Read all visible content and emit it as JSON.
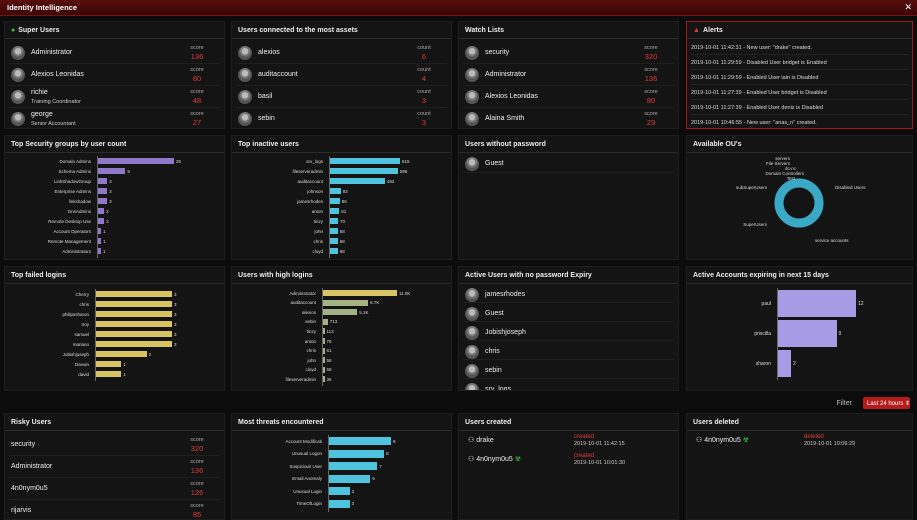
{
  "app": {
    "title": "Identity Intelligence",
    "close": "✕"
  },
  "colors": {
    "purple": "#8f78c9",
    "cyan": "#4fc3dd",
    "yellow": "#d8c463",
    "lavender": "#a89be6",
    "donut": "#39a9c6",
    "red": "#e03a3a"
  },
  "super_users": {
    "title": "Super Users",
    "icon": "user-star-icon",
    "items": [
      {
        "name": "Administrator",
        "subtitle": "",
        "score_label": "score",
        "score": "136"
      },
      {
        "name": "Alexios Leonidas",
        "subtitle": "",
        "score_label": "score",
        "score": "80"
      },
      {
        "name": "richie",
        "subtitle": "Training Coordinator",
        "score_label": "score",
        "score": "48"
      },
      {
        "name": "george",
        "subtitle": "Senior Accountant",
        "score_label": "score",
        "score": "27"
      }
    ]
  },
  "connected": {
    "title": "Users connected to the most assets",
    "items": [
      {
        "name": "alexios",
        "label": "count",
        "value": "6"
      },
      {
        "name": "auditaccount",
        "label": "count",
        "value": "4"
      },
      {
        "name": "basil",
        "label": "count",
        "value": "3"
      },
      {
        "name": "sebin",
        "label": "count",
        "value": "3"
      }
    ]
  },
  "watch": {
    "title": "Watch Lists",
    "items": [
      {
        "name": "security",
        "label": "score",
        "value": "320"
      },
      {
        "name": "Administrator",
        "label": "score",
        "value": "136"
      },
      {
        "name": "Alexios Leonidas",
        "label": "score",
        "value": "80"
      },
      {
        "name": "Alaina Smith",
        "label": "score",
        "value": "29"
      }
    ]
  },
  "alerts": {
    "title": "Alerts",
    "icon": "warning-icon",
    "items": [
      "2019-10-01 11:42:31 - New user: \"drake\" created.",
      "2019-10-01 11:29:59 - Disabled User bridget is Enabled",
      "2019-10-01 11:29:59 - Enabled User iain is Disabled",
      "2019-10-01 11:27:39 - Enabled User bridget is Disabled",
      "2019-10-01 11:27:39 - Enabled User deniz is Disabled",
      "2019-10-01 10:46:55 - New user: \"anas_n\" created."
    ]
  },
  "without_password": {
    "title": "Users without password",
    "items": [
      "Guest"
    ]
  },
  "active_no_expiry": {
    "title": "Active Users with no password Expiry",
    "items": [
      "jamesrhodes",
      "Guest",
      "Jobishjoseph",
      "chris",
      "sebin",
      "srv_logs"
    ]
  },
  "filter": {
    "label": "Filter",
    "value": "Last 24 hours ⇕"
  },
  "risky": {
    "title": "Risky Users",
    "items": [
      {
        "name": "security",
        "label": "score",
        "value": "320"
      },
      {
        "name": "Administrator",
        "label": "score",
        "value": "136"
      },
      {
        "name": "4n0nym0u5",
        "label": "score",
        "value": "126"
      },
      {
        "name": "rijarvis",
        "label": "score",
        "value": "85"
      }
    ]
  },
  "created": {
    "title": "Users created",
    "items": [
      {
        "name": "drake",
        "status": "created",
        "date": "2019-10-01 11:42:15",
        "badge": ""
      },
      {
        "name": "4n0nym0u5",
        "status": "created",
        "date": "2019-10-01 10:01:30",
        "badge": "☢"
      }
    ]
  },
  "deleted": {
    "title": "Users deleted",
    "items": [
      {
        "name": "4n0nym0u5",
        "status": "deleted",
        "date": "2019-10-01 10:06:29",
        "badge": "☢"
      }
    ]
  },
  "charts": {
    "groups": {
      "title": "Top Security groups by user count",
      "chart_data": {
        "type": "bar",
        "orientation": "horizontal",
        "color": "#8f78c9",
        "max": 25,
        "categories": [
          "Domain Admins",
          "Schema Admins",
          "LinkShadowGroup",
          "Enterprise Admins",
          "linkshadow",
          "DnsAdmins",
          "Remote Desktop Use",
          "Account Operators",
          "Remote Management",
          "Administrators"
        ],
        "values": [
          25,
          9,
          3,
          3,
          3,
          2,
          2,
          1,
          1,
          1
        ],
        "labels": [
          "25",
          "9",
          "3",
          "3",
          "3",
          "2",
          "2",
          "1",
          "1",
          "1"
        ]
      }
    },
    "inactive": {
      "title": "Top inactive users",
      "chart_data": {
        "type": "bar",
        "orientation": "horizontal",
        "color": "#4fc3dd",
        "max": 615,
        "categories": [
          "srv_logs",
          "fileserveradmin",
          "auditaccount",
          "johnson",
          "jamesrhodes",
          "anton",
          "tinzy",
          "john",
          "chris",
          "cloyd"
        ],
        "values": [
          615,
          596,
          482,
          93,
          86,
          81,
          70,
          68,
          68,
          68
        ],
        "labels": [
          "615",
          "596",
          "482",
          "93",
          "86",
          "81",
          "70",
          "68",
          "68",
          "68"
        ]
      }
    },
    "ous": {
      "title": "Available OU's",
      "chart_data": {
        "type": "pie",
        "style": "donut",
        "color": "#39a9c6",
        "categories": [
          "servers",
          "File Servers",
          "dc-nc",
          "Domain Controllers",
          "Test",
          "Disabled Users",
          "service accounts",
          "SuperUsers",
          "subSuperUsers"
        ]
      }
    },
    "failed": {
      "title": "Top failed logins",
      "chart_data": {
        "type": "bar",
        "orientation": "horizontal",
        "color": "#d8c463",
        "max": 3,
        "categories": [
          "Cherry",
          "chris",
          "philipssharon",
          "troy",
          "samuel",
          "mariano",
          "Jobishjoseph",
          "Darwin",
          "david"
        ],
        "values": [
          3,
          3,
          3,
          3,
          3,
          3,
          2,
          1,
          1
        ],
        "labels": [
          "3",
          "3",
          "3",
          "3",
          "3",
          "3",
          "2",
          "1",
          "1"
        ]
      }
    },
    "high": {
      "title": "Users with high logins",
      "chart_data": {
        "type": "bar",
        "orientation": "horizontal",
        "color_first": "#d8c463",
        "color": "#a3b283",
        "max": 11000,
        "categories": [
          "Administrator",
          "auditaccount",
          "alexios",
          "sebin",
          "tinzy",
          "anton",
          "chris",
          "john",
          "cloyd",
          "fileserveradmin"
        ],
        "values": [
          11000,
          6700,
          5100,
          713,
          113,
          76,
          61,
          58,
          58,
          36
        ],
        "labels": [
          "11.0K",
          "6.7K",
          "5.1K",
          "713",
          "113",
          "76",
          "61",
          "58",
          "58",
          "36"
        ]
      }
    },
    "expiring": {
      "title": "Active Accounts expiring in next 15 days",
      "chart_data": {
        "type": "bar",
        "orientation": "horizontal",
        "color": "#a89be6",
        "max": 12,
        "categories": [
          "paul",
          "priscilla",
          "sharon"
        ],
        "values": [
          12,
          9,
          2
        ],
        "labels": [
          "12",
          "9",
          "2"
        ]
      }
    },
    "threats": {
      "title": "Most threats encountered",
      "chart_data": {
        "type": "bar",
        "orientation": "horizontal",
        "color": "#4fc3dd",
        "max": 9,
        "categories": [
          "Account Modificati",
          "Unusual Logon",
          "Suspicious User",
          "Email Anomaly",
          "Unusual Login",
          "TimeOfLogin"
        ],
        "values": [
          9,
          8,
          7,
          6,
          3,
          3
        ],
        "labels": [
          "9",
          "8",
          "7",
          "6",
          "3",
          "3"
        ]
      }
    }
  }
}
